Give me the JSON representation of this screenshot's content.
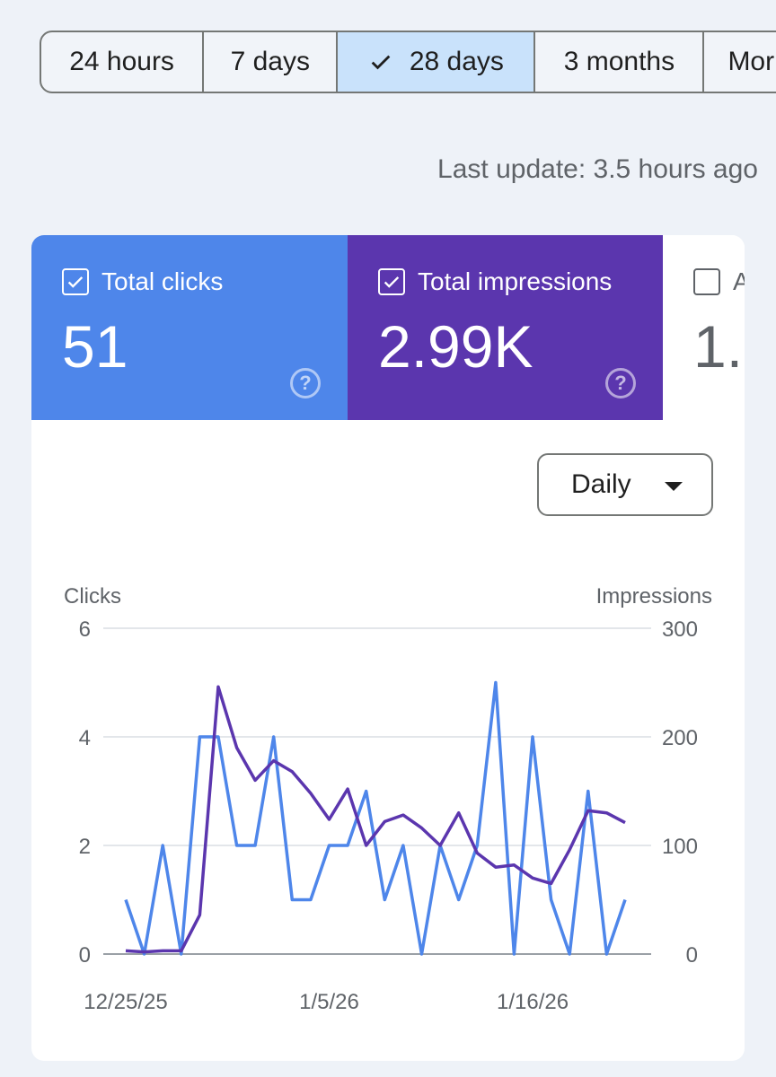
{
  "range_tabs": [
    {
      "label": "24 hours",
      "selected": false
    },
    {
      "label": "7 days",
      "selected": false
    },
    {
      "label": "28 days",
      "selected": true
    },
    {
      "label": "3 months",
      "selected": false
    },
    {
      "label": "Mor",
      "selected": false
    }
  ],
  "last_update": "Last update: 3.5 hours ago",
  "metrics": {
    "clicks": {
      "label": "Total clicks",
      "value": "51",
      "checked": true,
      "color": "#4e86ea"
    },
    "impressions": {
      "label": "Total impressions",
      "value": "2.99K",
      "checked": true,
      "color": "#5b36ae"
    },
    "third": {
      "label": "A",
      "value": "1.",
      "checked": false
    }
  },
  "granularity": {
    "label": "Daily"
  },
  "icons": {
    "check": "check-icon",
    "help": "help-circle-icon",
    "dropdown": "caret-down-icon"
  },
  "chart_data": {
    "type": "line",
    "ylabel_left": "Clicks",
    "ylabel_right": "Impressions",
    "y_left_ticks": [
      0,
      2,
      4,
      6
    ],
    "y_right_ticks": [
      0,
      100,
      200,
      300
    ],
    "ylim_left": [
      0,
      6
    ],
    "ylim_right": [
      0,
      300
    ],
    "x_tick_labels": [
      "12/25/25",
      "1/5/26",
      "1/16/26"
    ],
    "x_tick_index": [
      0,
      11,
      22
    ],
    "grid": true,
    "series": [
      {
        "axis": "left",
        "color": "#4e86ea",
        "values": [
          1,
          0,
          2,
          0,
          4,
          4,
          2,
          2,
          4,
          1,
          1,
          2,
          2,
          3,
          1,
          2,
          0,
          2,
          1,
          2,
          5,
          0,
          4,
          1,
          0,
          3,
          0,
          1
        ]
      },
      {
        "axis": "right",
        "color": "#5b36ae",
        "values": [
          3,
          2,
          3,
          3,
          36,
          246,
          190,
          160,
          178,
          168,
          148,
          124,
          152,
          100,
          122,
          128,
          116,
          100,
          130,
          93,
          80,
          82,
          70,
          65,
          96,
          132,
          130,
          121
        ]
      }
    ]
  }
}
